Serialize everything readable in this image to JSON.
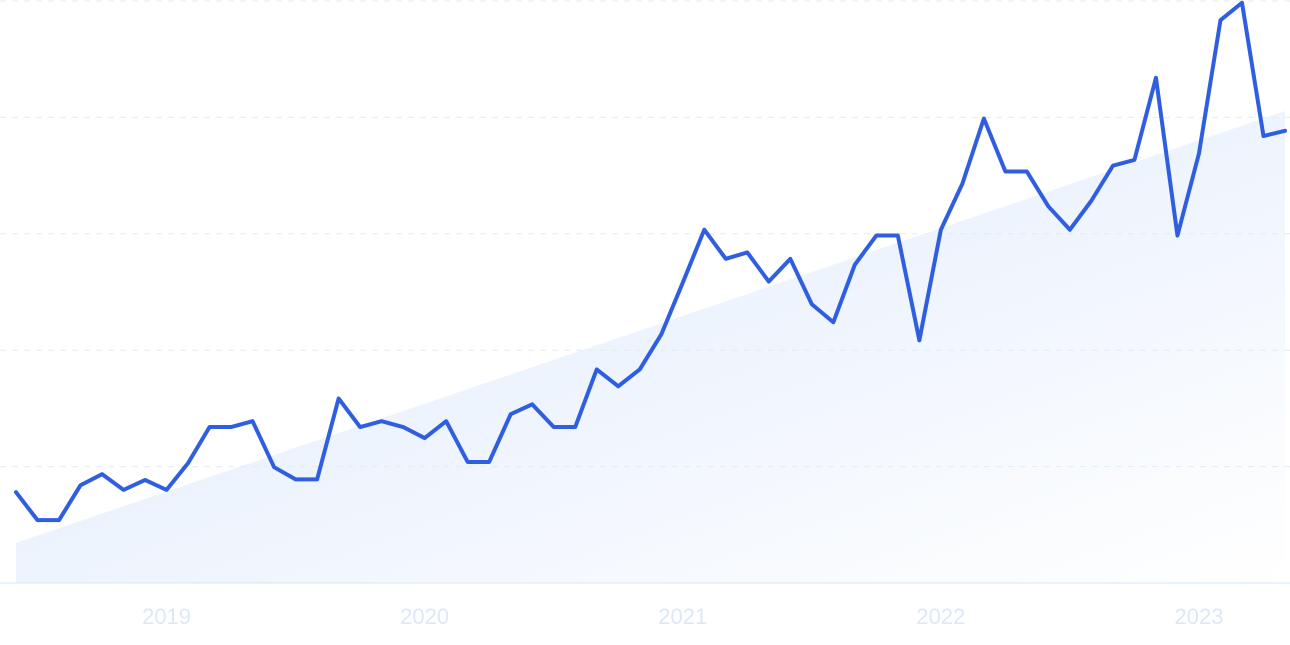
{
  "chart_data": {
    "type": "line",
    "categories": [
      null,
      null,
      null,
      null,
      null,
      null,
      null,
      "2019",
      null,
      null,
      null,
      null,
      null,
      null,
      null,
      null,
      null,
      null,
      null,
      "2020",
      null,
      null,
      null,
      null,
      null,
      null,
      null,
      null,
      null,
      null,
      null,
      "2021",
      null,
      null,
      null,
      null,
      null,
      null,
      null,
      null,
      null,
      null,
      null,
      "2022",
      null,
      null,
      null,
      null,
      null,
      null,
      null,
      null,
      null,
      null,
      null,
      "2023",
      null,
      null,
      null,
      null
    ],
    "series": [
      {
        "color": "#2f5fe0",
        "values": [
          15.6,
          10.8,
          10.8,
          16.8,
          18.7,
          16.0,
          17.7,
          16.0,
          20.6,
          26.8,
          26.8,
          27.8,
          19.9,
          17.8,
          17.8,
          31.7,
          26.8,
          27.8,
          26.8,
          24.9,
          27.8,
          20.8,
          20.8,
          29.0,
          30.7,
          26.8,
          26.8,
          36.7,
          33.8,
          36.7,
          42.7,
          51.6,
          60.7,
          55.7,
          56.8,
          51.8,
          55.7,
          47.9,
          44.8,
          54.7,
          59.7,
          59.7,
          41.7,
          60.7,
          68.6,
          79.8,
          70.7,
          70.7,
          64.7,
          60.7,
          65.7,
          71.7,
          72.7,
          86.8,
          59.7,
          73.8,
          96.7,
          99.7,
          76.8,
          77.7
        ]
      }
    ],
    "trend_values": [
      6.9,
      81.1
    ],
    "ylim": [
      0,
      100
    ],
    "yticks": [
      0,
      20,
      40,
      60,
      80,
      100
    ],
    "grid": true
  }
}
